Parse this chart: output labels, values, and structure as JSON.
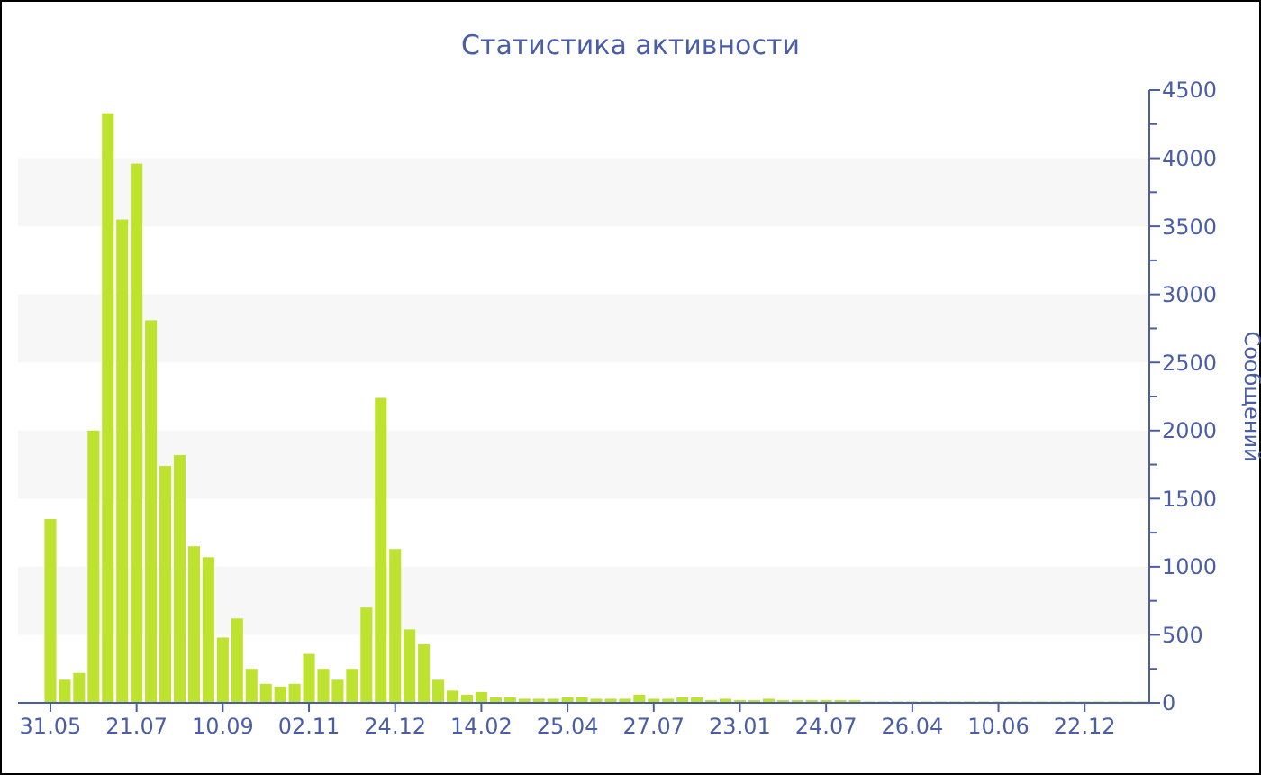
{
  "chart_data": {
    "type": "bar",
    "title": "Статистика активности",
    "ylabel": "Сообщений",
    "categories": [
      "31.05",
      null,
      null,
      null,
      null,
      null,
      "21.07",
      null,
      null,
      null,
      null,
      null,
      "10.09",
      null,
      null,
      null,
      null,
      null,
      "02.11",
      null,
      null,
      null,
      null,
      null,
      "24.12",
      null,
      null,
      null,
      null,
      null,
      "14.02",
      null,
      null,
      null,
      null,
      null,
      "25.04",
      null,
      null,
      null,
      null,
      null,
      "27.07",
      null,
      null,
      null,
      null,
      null,
      "23.01",
      null,
      null,
      null,
      null,
      null,
      "24.07",
      null,
      null,
      null,
      null,
      null,
      "26.04",
      null,
      null,
      null,
      null,
      null,
      "10.06",
      null,
      null,
      null,
      null,
      null,
      "22.12",
      null,
      null,
      null,
      null
    ],
    "values": [
      1350,
      170,
      220,
      2000,
      4330,
      3550,
      3960,
      2810,
      1740,
      1820,
      1150,
      1070,
      480,
      620,
      250,
      140,
      120,
      140,
      360,
      250,
      170,
      250,
      700,
      2240,
      1130,
      540,
      430,
      170,
      90,
      60,
      80,
      40,
      40,
      30,
      30,
      30,
      40,
      40,
      30,
      30,
      30,
      60,
      30,
      30,
      40,
      40,
      20,
      30,
      20,
      20,
      30,
      20,
      20,
      20,
      20,
      20,
      20,
      10,
      10,
      10,
      10,
      10,
      10,
      10,
      10,
      10,
      10,
      10,
      10,
      10,
      10,
      10,
      10,
      10,
      10,
      10,
      10
    ],
    "color": "#bde22f",
    "ylim": [
      0,
      4500
    ],
    "yticks": [
      0,
      {
        "value": 250,
        "label": null
      },
      500,
      {
        "value": 750,
        "label": null
      },
      1000,
      {
        "value": 1250,
        "label": null
      },
      1500,
      {
        "value": 1750,
        "label": null
      },
      2000,
      {
        "value": 2250,
        "label": null
      },
      2500,
      {
        "value": 2750,
        "label": null
      },
      3000,
      {
        "value": 3250,
        "label": null
      },
      3500,
      {
        "value": 3750,
        "label": null
      },
      4000,
      {
        "value": 4250,
        "label": null
      },
      4500
    ],
    "bands": [
      {
        "axis": "y",
        "from": 500,
        "to": 1000,
        "color": "#f7f7f7"
      },
      {
        "axis": "y",
        "from": 1500,
        "to": 2000,
        "color": "#f7f7f7"
      },
      {
        "axis": "y",
        "from": 2500,
        "to": 3000,
        "color": "#f7f7f7"
      },
      {
        "axis": "y",
        "from": 3500,
        "to": 4000,
        "color": "#f7f7f7"
      }
    ]
  }
}
